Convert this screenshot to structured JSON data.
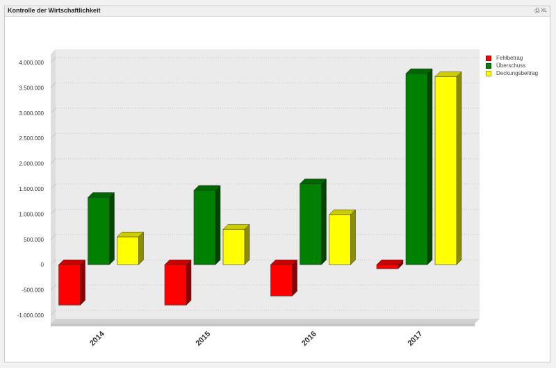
{
  "window": {
    "title": "Kontrolle der Wirtschaftlichkeit",
    "icons": [
      {
        "name": "print-icon"
      },
      {
        "name": "excel-export-icon",
        "label": "XL"
      }
    ]
  },
  "colors": {
    "Fehlbetrag": "#ff0000",
    "Überschuss": "#008000",
    "Deckungsbeitrag": "#ffff00",
    "plot_background": "#ebebeb"
  },
  "chart_data": {
    "type": "bar",
    "categories": [
      "2014",
      "2015",
      "2016",
      "2017"
    ],
    "series": [
      {
        "name": "Fehlbetrag",
        "values": [
          -800000,
          -800000,
          -620000,
          -80000
        ]
      },
      {
        "name": "Überschuss",
        "values": [
          1330000,
          1470000,
          1600000,
          3780000
        ]
      },
      {
        "name": "Deckungsbeitrag",
        "values": [
          550000,
          700000,
          990000,
          3720000
        ]
      }
    ],
    "ylim": [
      -1000000,
      4000000
    ],
    "yticks": [
      -1000000,
      -500000,
      0,
      500000,
      1000000,
      1500000,
      2000000,
      2500000,
      3000000,
      3500000,
      4000000
    ],
    "ytick_labels": [
      "-1.000.000",
      "-500.000",
      "0",
      "500.000",
      "1.000.000",
      "1.500.000",
      "2.000.000",
      "2.500.000",
      "3.000.000",
      "3.500.000",
      "4.000.000"
    ],
    "grid": true,
    "legend_position": "right",
    "style": "3d"
  }
}
